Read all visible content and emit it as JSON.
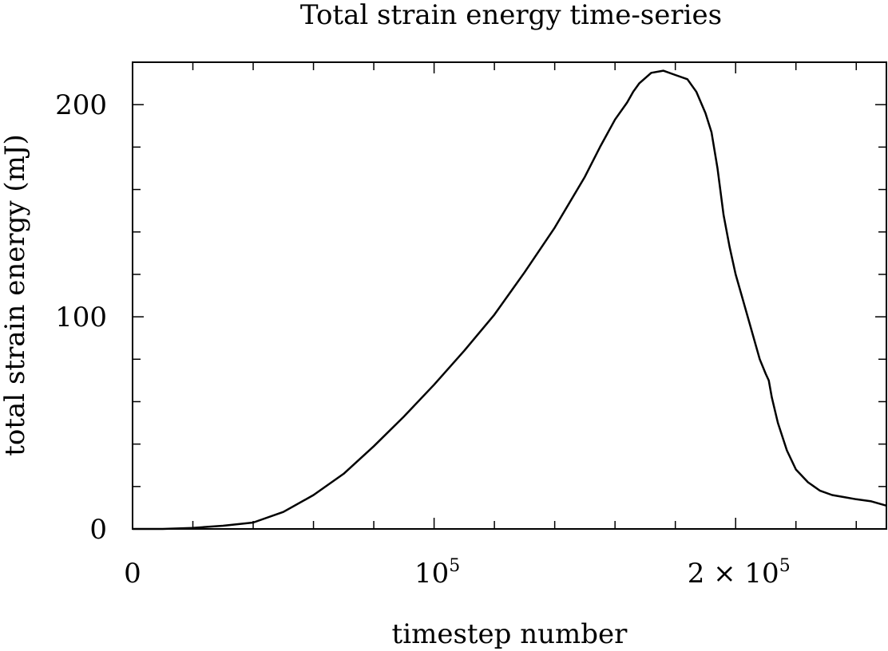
{
  "chart_data": {
    "type": "line",
    "title": "Total strain energy time-series",
    "xlabel": "timestep number",
    "ylabel": "total strain energy (mJ)",
    "xlim": [
      0,
      250000
    ],
    "ylim": [
      0,
      220
    ],
    "x_ticks": [
      {
        "value": 0,
        "label": "0"
      },
      {
        "value": 100000,
        "base": "10",
        "exp": "5"
      },
      {
        "value": 200000,
        "base": "2 × 10",
        "exp": "5"
      }
    ],
    "y_ticks": [
      {
        "value": 0,
        "label": "0"
      },
      {
        "value": 100,
        "label": "100"
      },
      {
        "value": 200,
        "label": "200"
      }
    ],
    "x_minor_step": 20000,
    "y_minor_step": 20,
    "grid": false,
    "colors": {
      "line": "#000000",
      "axes": "#000000",
      "background": "#ffffff"
    },
    "series": [
      {
        "x": [
          0,
          10000,
          20000,
          30000,
          40000,
          50000,
          60000,
          70000,
          80000,
          90000,
          100000,
          110000,
          120000,
          126000,
          130000,
          140000,
          150000,
          155000,
          160000,
          164000,
          166000,
          168000,
          172000,
          176000,
          180000,
          184000,
          187000,
          190000,
          192000,
          194000,
          196000,
          198000,
          200000,
          202000,
          205000,
          208000,
          210000,
          211000,
          212000,
          214000,
          217000,
          220000,
          224000,
          228000,
          232000,
          236000,
          240000,
          245000,
          250000
        ],
        "y": [
          0,
          0,
          0.5,
          1.5,
          3,
          8,
          16,
          26,
          39,
          53,
          68,
          84,
          101,
          113,
          121,
          142,
          166,
          180,
          193,
          201,
          206,
          210,
          215,
          216,
          214,
          212,
          206,
          196,
          187,
          170,
          148,
          133,
          120,
          110,
          95,
          80,
          73,
          70,
          62,
          50,
          37,
          28,
          22,
          18,
          16,
          15,
          14,
          13,
          11
        ]
      }
    ]
  }
}
